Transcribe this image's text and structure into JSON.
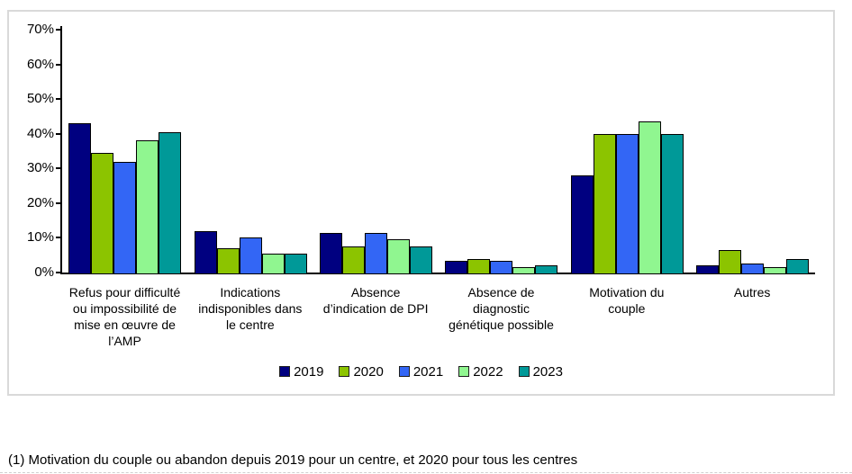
{
  "figure": {
    "footnote": "(1) Motivation du couple ou abandon depuis 2019 pour un centre, et 2020 pour tous les centres"
  },
  "chart_data": {
    "type": "bar",
    "title": "",
    "xlabel": "",
    "ylabel": "",
    "ylim": [
      0,
      70
    ],
    "yticks": [
      0,
      10,
      20,
      30,
      40,
      50,
      60,
      70
    ],
    "ytick_labels": [
      "0%",
      "10%",
      "20%",
      "30%",
      "40%",
      "50%",
      "60%",
      "70%"
    ],
    "grid": false,
    "legend_position": "bottom-center",
    "bar_border_color": "#000000",
    "categories": [
      "Refus pour difficulté\nou impossibilité de\nmise en œuvre de\nl’AMP",
      "Indications\nindisponibles dans\nle centre",
      "Absence\nd’indication de DPI",
      "Absence de\ndiagnostic\ngénétique possible",
      "Motivation du\ncouple",
      "Autres"
    ],
    "series": [
      {
        "name": "2019",
        "color": "#000080",
        "values": [
          43.0,
          12.0,
          11.5,
          3.5,
          28.0,
          2.0
        ]
      },
      {
        "name": "2020",
        "color": "#8CC400",
        "values": [
          34.5,
          7.0,
          7.5,
          4.0,
          40.0,
          6.5
        ]
      },
      {
        "name": "2021",
        "color": "#3366F5",
        "values": [
          32.0,
          10.0,
          11.5,
          3.5,
          40.0,
          2.5
        ]
      },
      {
        "name": "2022",
        "color": "#90F690",
        "values": [
          38.0,
          5.5,
          9.5,
          1.5,
          43.5,
          1.5
        ]
      },
      {
        "name": "2023",
        "color": "#009998",
        "values": [
          40.5,
          5.5,
          7.5,
          2.0,
          40.0,
          4.0
        ]
      }
    ]
  }
}
